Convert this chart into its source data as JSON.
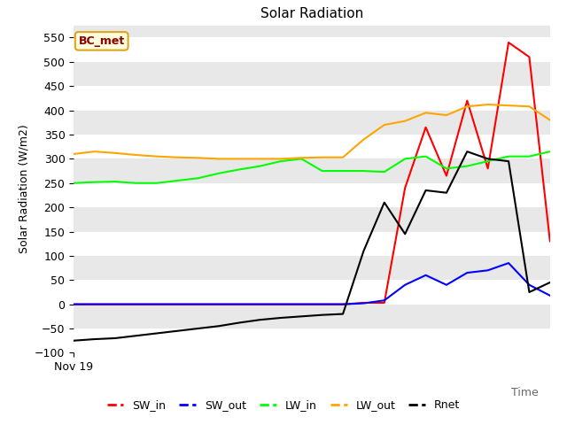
{
  "title": "Solar Radiation",
  "ylabel": "Solar Radiation (W/m2)",
  "xlabel": "Time",
  "x_label_date": "Nov 19",
  "annotation": "BC_met",
  "ylim": [
    -100,
    575
  ],
  "yticks": [
    -100,
    -50,
    0,
    50,
    100,
    150,
    200,
    250,
    300,
    350,
    400,
    450,
    500,
    550
  ],
  "bg_color": "#e8e8e8",
  "series": {
    "SW_in": {
      "color": "red",
      "data": [
        0,
        0,
        0,
        0,
        0,
        0,
        0,
        0,
        0,
        0,
        0,
        0,
        0,
        0,
        3,
        3,
        240,
        365,
        265,
        420,
        280,
        540,
        510,
        130
      ]
    },
    "SW_out": {
      "color": "blue",
      "data": [
        0,
        0,
        0,
        0,
        0,
        0,
        0,
        0,
        0,
        0,
        0,
        0,
        0,
        0,
        2,
        8,
        40,
        60,
        40,
        65,
        70,
        85,
        40,
        18
      ]
    },
    "LW_in": {
      "color": "lime",
      "data": [
        250,
        252,
        253,
        250,
        250,
        255,
        260,
        270,
        278,
        285,
        295,
        300,
        275,
        275,
        275,
        273,
        300,
        305,
        280,
        285,
        295,
        305,
        305,
        315
      ]
    },
    "LW_out": {
      "color": "orange",
      "data": [
        310,
        315,
        312,
        308,
        305,
        303,
        302,
        300,
        300,
        300,
        300,
        302,
        303,
        303,
        340,
        370,
        378,
        395,
        390,
        408,
        412,
        410,
        408,
        380
      ]
    },
    "Rnet": {
      "color": "black",
      "data": [
        -75,
        -72,
        -70,
        -65,
        -60,
        -55,
        -50,
        -45,
        -38,
        -32,
        -28,
        -25,
        -22,
        -20,
        110,
        210,
        145,
        235,
        230,
        315,
        300,
        295,
        25,
        45
      ]
    }
  },
  "n_points": 24,
  "figsize": [
    6.4,
    4.8
  ],
  "dpi": 100
}
